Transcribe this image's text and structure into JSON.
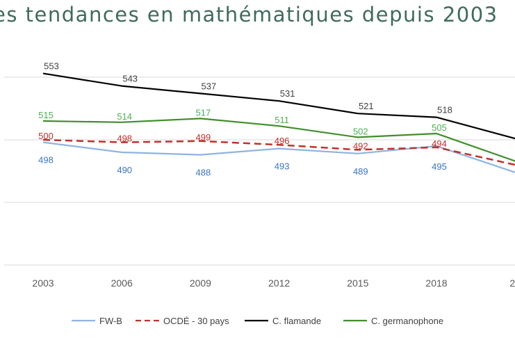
{
  "chart_data": {
    "type": "line",
    "title": "es tendances en mathématiques depuis 2003",
    "categories": [
      "2003",
      "2006",
      "2009",
      "2012",
      "2015",
      "2018",
      "20"
    ],
    "ylim": [
      400,
      560
    ],
    "grid": true,
    "legend_position": "bottom",
    "series": [
      {
        "name": "FW-B",
        "color": "#8db4e2",
        "label_color": "#3a74c4",
        "dash": false,
        "values": [
          498,
          490,
          488,
          493,
          489,
          495,
          474
        ],
        "labels": [
          "498",
          "490",
          "488",
          "493",
          "489",
          "495",
          ""
        ]
      },
      {
        "name": "OCDÉ - 30 pays",
        "color": "#c0302a",
        "label_color": "#c0302a",
        "dash": true,
        "values": [
          500,
          498,
          499,
          496,
          492,
          494,
          480
        ],
        "labels": [
          "500",
          "498",
          "499",
          "496",
          "492",
          "494",
          ""
        ]
      },
      {
        "name": "C. flamande",
        "color": "#000000",
        "label_color": "#404040",
        "dash": false,
        "values": [
          553,
          543,
          537,
          531,
          521,
          518,
          501
        ],
        "labels": [
          "553",
          "543",
          "537",
          "531",
          "521",
          "518",
          ""
        ]
      },
      {
        "name": "C. germanophone",
        "color": "#3f8f2a",
        "label_color": "#4caf50",
        "dash": false,
        "values": [
          515,
          514,
          517,
          511,
          502,
          505,
          483
        ],
        "labels": [
          "515",
          "514",
          "517",
          "511",
          "502",
          "505",
          ""
        ]
      }
    ]
  }
}
